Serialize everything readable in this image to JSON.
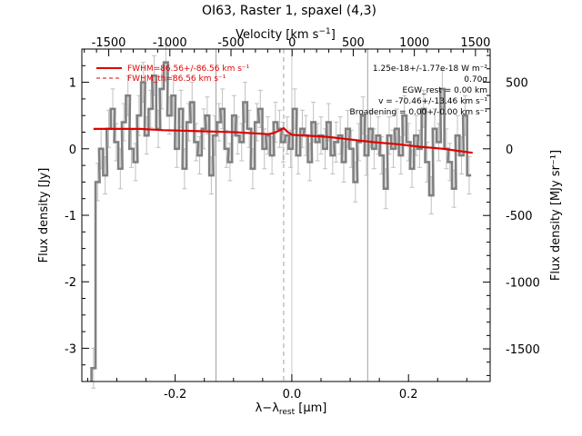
{
  "chart_data": {
    "type": "line",
    "title": "OI63, Raster 1, spaxel (4,3)",
    "xlabel": "λ−λ_rest [μm]",
    "ylabel": "Flux density [Jy]",
    "top_axis_label": "Velocity [km s⁻¹]",
    "right_axis_label": "Flux density [MJy sr⁻¹]",
    "xlim": [
      -0.36,
      0.34
    ],
    "ylim": [
      -3.5,
      1.5
    ],
    "velocity_lim": [
      -1720,
      1620
    ],
    "right_lim": [
      -1745,
      748
    ],
    "x_ticks": [
      -0.2,
      0.0,
      0.2
    ],
    "x_tick_labels": [
      "-0.2",
      "0.0",
      "0.2"
    ],
    "y_ticks": [
      -3,
      -2,
      -1,
      0,
      1
    ],
    "y_tick_labels": [
      "-3",
      "-2",
      "-1",
      "0",
      "1"
    ],
    "top_ticks": [
      -1500,
      -1000,
      -500,
      0,
      500,
      1000,
      1500
    ],
    "top_tick_labels": [
      "-1500",
      "-1000",
      "-500",
      "0",
      "500",
      "1000",
      "1500"
    ],
    "right_ticks": [
      500,
      0,
      -500,
      -1000,
      -1500
    ],
    "right_tick_labels": [
      "500",
      "0",
      "-500",
      "-1000",
      "-1500"
    ],
    "grid": false,
    "legend_position": "top-left",
    "legend": [
      {
        "label": "FWHM=86.56+/-86.56 km s⁻¹",
        "style": "solid",
        "color": "#e00000"
      },
      {
        "label": "FWHM_th=86.56 km s⁻¹",
        "style": "dashed",
        "color": "#e00000"
      }
    ],
    "annotations": [
      "1.25e-18+/-1.77e-18 W m⁻²",
      "0.70σ",
      "EGW_rest = 0.00 km",
      "v = -70.46+/-13.46 km s⁻¹",
      "Broadening = 0.00+/-0.00 km s⁻¹"
    ],
    "vertical_lines": [
      {
        "x": -0.13,
        "style": "solid",
        "color": "#a0a0a0"
      },
      {
        "x": -0.014,
        "style": "dashed",
        "color": "#a0a0a0"
      },
      {
        "x": 0.0,
        "style": "solid",
        "color": "#c8c8c8"
      },
      {
        "x": 0.13,
        "style": "solid",
        "color": "#a0a0a0"
      }
    ],
    "series": [
      {
        "style": "histogram",
        "color": "#808080",
        "x": [
          -0.34,
          -0.333,
          -0.327,
          -0.32,
          -0.314,
          -0.307,
          -0.301,
          -0.294,
          -0.288,
          -0.281,
          -0.275,
          -0.268,
          -0.262,
          -0.255,
          -0.249,
          -0.242,
          -0.236,
          -0.229,
          -0.223,
          -0.216,
          -0.21,
          -0.203,
          -0.197,
          -0.19,
          -0.184,
          -0.177,
          -0.171,
          -0.164,
          -0.158,
          -0.151,
          -0.145,
          -0.138,
          -0.132,
          -0.125,
          -0.119,
          -0.112,
          -0.106,
          -0.099,
          -0.093,
          -0.086,
          -0.08,
          -0.073,
          -0.067,
          -0.06,
          -0.054,
          -0.047,
          -0.041,
          -0.034,
          -0.028,
          -0.021,
          -0.015,
          -0.008,
          -0.002,
          0.005,
          0.011,
          0.018,
          0.024,
          0.031,
          0.037,
          0.044,
          0.05,
          0.057,
          0.063,
          0.07,
          0.076,
          0.083,
          0.089,
          0.096,
          0.102,
          0.109,
          0.115,
          0.122,
          0.128,
          0.135,
          0.141,
          0.148,
          0.154,
          0.161,
          0.167,
          0.174,
          0.18,
          0.187,
          0.193,
          0.2,
          0.206,
          0.213,
          0.219,
          0.226,
          0.232,
          0.239,
          0.245,
          0.252,
          0.258,
          0.265,
          0.271,
          0.278,
          0.284,
          0.291,
          0.297,
          0.304
        ],
        "y": [
          -3.3,
          -0.5,
          0.0,
          -0.4,
          0.3,
          0.6,
          0.1,
          -0.3,
          0.4,
          0.8,
          0.0,
          -0.2,
          0.5,
          1.0,
          0.2,
          0.6,
          1.1,
          0.3,
          0.9,
          1.3,
          0.5,
          0.8,
          0.0,
          0.6,
          -0.3,
          0.4,
          0.7,
          0.1,
          -0.1,
          0.3,
          0.5,
          -0.4,
          0.2,
          0.4,
          0.6,
          0.0,
          -0.2,
          0.5,
          0.2,
          0.1,
          0.7,
          0.3,
          -0.3,
          0.4,
          0.6,
          0.0,
          0.2,
          -0.1,
          0.4,
          0.3,
          0.1,
          0.2,
          0.0,
          0.6,
          -0.1,
          0.3,
          0.2,
          -0.2,
          0.4,
          0.1,
          0.2,
          0.0,
          0.4,
          -0.1,
          0.1,
          0.2,
          -0.2,
          0.3,
          0.0,
          -0.5,
          0.1,
          0.5,
          -0.1,
          0.3,
          0.0,
          0.2,
          -0.1,
          -0.6,
          0.2,
          0.0,
          0.3,
          -0.1,
          0.5,
          0.1,
          -0.3,
          0.2,
          0.0,
          0.6,
          -0.2,
          -0.7,
          0.3,
          0.1,
          0.9,
          0.0,
          -0.2,
          -0.6,
          0.2,
          -0.1,
          0.5,
          -0.4
        ],
        "err": [
          0.3,
          0.28,
          0.3,
          0.28,
          0.28,
          0.3,
          0.28,
          0.3,
          0.28,
          0.3,
          0.28,
          0.28,
          0.3,
          0.3,
          0.28,
          0.28,
          0.3,
          0.28,
          0.3,
          0.28,
          0.28,
          0.3,
          0.28,
          0.28,
          0.3,
          0.28,
          0.3,
          0.28,
          0.28,
          0.3,
          0.28,
          0.28,
          0.3,
          0.28,
          0.3,
          0.28,
          0.28,
          0.3,
          0.28,
          0.28,
          0.3,
          0.28,
          0.3,
          0.28,
          0.28,
          0.3,
          0.28,
          0.28,
          0.3,
          0.28,
          0.3,
          0.28,
          0.28,
          0.3,
          0.28,
          0.28,
          0.3,
          0.28,
          0.3,
          0.28,
          0.28,
          0.3,
          0.28,
          0.28,
          0.3,
          0.28,
          0.3,
          0.28,
          0.28,
          0.3,
          0.28,
          0.28,
          0.3,
          0.28,
          0.3,
          0.28,
          0.28,
          0.3,
          0.28,
          0.28,
          0.3,
          0.28,
          0.3,
          0.28,
          0.28,
          0.3,
          0.28,
          0.28,
          0.3,
          0.28,
          0.3,
          0.28,
          0.28,
          0.3,
          0.28,
          0.28,
          0.3,
          0.28,
          0.3,
          0.28
        ]
      },
      {
        "style": "line",
        "color": "#e00000",
        "x": [
          -0.34,
          -0.3,
          -0.26,
          -0.22,
          -0.18,
          -0.14,
          -0.1,
          -0.06,
          -0.04,
          -0.03,
          -0.02,
          -0.014,
          -0.008,
          0.0,
          0.02,
          0.06,
          0.1,
          0.14,
          0.18,
          0.22,
          0.26,
          0.3,
          0.31
        ],
        "y": [
          0.3,
          0.3,
          0.3,
          0.28,
          0.27,
          0.26,
          0.25,
          0.23,
          0.22,
          0.24,
          0.28,
          0.31,
          0.26,
          0.21,
          0.2,
          0.18,
          0.14,
          0.1,
          0.07,
          0.03,
          0.0,
          -0.05,
          -0.06
        ]
      }
    ]
  }
}
